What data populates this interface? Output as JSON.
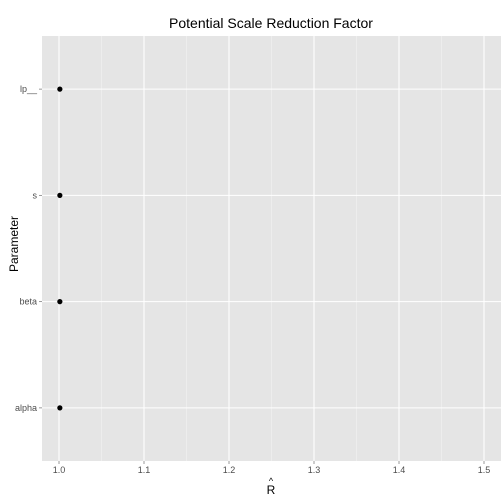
{
  "chart_data": {
    "type": "scatter",
    "title": "Potential Scale Reduction Factor",
    "xlabel": "R",
    "xlabel_hat": "^",
    "ylabel": "Parameter",
    "xlim": [
      0.98,
      1.52
    ],
    "x_ticks": [
      "1.0",
      "1.1",
      "1.2",
      "1.3",
      "1.4",
      "1.5"
    ],
    "x_tick_values": [
      1.0,
      1.1,
      1.2,
      1.3,
      1.4,
      1.5
    ],
    "categories": [
      "lp__",
      "s",
      "beta",
      "alpha"
    ],
    "points": [
      {
        "category": "lp__",
        "x": 1.001
      },
      {
        "category": "s",
        "x": 1.001
      },
      {
        "category": "beta",
        "x": 1.001
      },
      {
        "category": "alpha",
        "x": 1.001
      }
    ],
    "grid": true,
    "colors": {
      "panel": "#e5e5e5",
      "grid_major": "#ffffff",
      "grid_minor": "#f2f2f2",
      "point": "#000000",
      "tick_text": "#4d4d4d"
    }
  }
}
